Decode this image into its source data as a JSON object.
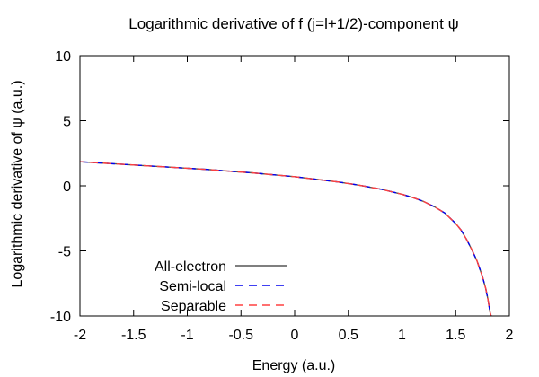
{
  "chart_data": {
    "type": "line",
    "title": "Logarithmic derivative of f (j=l+1/2)-component ψ",
    "xlabel": "Energy (a.u.)",
    "ylabel": "Logarithmic derivative of ψ (a.u.)",
    "xlim": [
      -2,
      2
    ],
    "ylim": [
      -10,
      10
    ],
    "xticks": [
      -2,
      -1.5,
      -1,
      -0.5,
      0,
      0.5,
      1,
      1.5,
      2
    ],
    "xtick_labels": [
      "-2",
      "-1.5",
      "-1",
      "-0.5",
      "0",
      "0.5",
      "1",
      "1.5",
      "2"
    ],
    "yticks": [
      -10,
      -5,
      0,
      5,
      10
    ],
    "ytick_labels": [
      "-10",
      "-5",
      "0",
      "5",
      "10"
    ],
    "grid": false,
    "legend_position": "bottom-left",
    "series": [
      {
        "name": "All-electron",
        "color": "#555555",
        "dash": "solid",
        "x": [
          -2.0,
          -1.8,
          -1.6,
          -1.4,
          -1.2,
          -1.0,
          -0.8,
          -0.6,
          -0.4,
          -0.2,
          0.0,
          0.2,
          0.4,
          0.6,
          0.8,
          1.0,
          1.1,
          1.2,
          1.3,
          1.4,
          1.5,
          1.55,
          1.6,
          1.65,
          1.7,
          1.75,
          1.78,
          1.8,
          1.81,
          1.82,
          1.83
        ],
        "y": [
          1.85,
          1.75,
          1.65,
          1.55,
          1.45,
          1.35,
          1.25,
          1.12,
          1.0,
          0.85,
          0.7,
          0.5,
          0.3,
          0.05,
          -0.25,
          -0.65,
          -0.9,
          -1.2,
          -1.6,
          -2.1,
          -2.9,
          -3.4,
          -4.1,
          -4.9,
          -5.8,
          -7.0,
          -7.9,
          -8.7,
          -9.2,
          -9.7,
          -10.0
        ]
      },
      {
        "name": "Semi-local",
        "color": "#0000ee",
        "dash": "dashed",
        "x": [
          -2.0,
          -1.8,
          -1.6,
          -1.4,
          -1.2,
          -1.0,
          -0.8,
          -0.6,
          -0.4,
          -0.2,
          0.0,
          0.2,
          0.4,
          0.6,
          0.8,
          1.0,
          1.1,
          1.2,
          1.3,
          1.4,
          1.5,
          1.55,
          1.6,
          1.65,
          1.7,
          1.75,
          1.78,
          1.8,
          1.81,
          1.82,
          1.83
        ],
        "y": [
          1.85,
          1.75,
          1.65,
          1.55,
          1.45,
          1.35,
          1.25,
          1.12,
          1.0,
          0.85,
          0.7,
          0.5,
          0.3,
          0.05,
          -0.25,
          -0.65,
          -0.9,
          -1.2,
          -1.6,
          -2.1,
          -2.9,
          -3.4,
          -4.1,
          -4.9,
          -5.8,
          -7.0,
          -7.9,
          -8.7,
          -9.2,
          -9.7,
          -10.0
        ]
      },
      {
        "name": "Separable",
        "color": "#ff4040",
        "dash": "dashed",
        "x": [
          -2.0,
          -1.8,
          -1.6,
          -1.4,
          -1.2,
          -1.0,
          -0.8,
          -0.6,
          -0.4,
          -0.2,
          0.0,
          0.2,
          0.4,
          0.6,
          0.8,
          1.0,
          1.1,
          1.2,
          1.3,
          1.4,
          1.5,
          1.55,
          1.6,
          1.65,
          1.7,
          1.75,
          1.78,
          1.8,
          1.81,
          1.82,
          1.83
        ],
        "y": [
          1.85,
          1.75,
          1.65,
          1.55,
          1.45,
          1.35,
          1.25,
          1.12,
          1.0,
          0.85,
          0.7,
          0.5,
          0.3,
          0.05,
          -0.25,
          -0.65,
          -0.9,
          -1.2,
          -1.6,
          -2.1,
          -2.9,
          -3.4,
          -4.1,
          -4.9,
          -5.8,
          -7.0,
          -7.9,
          -8.7,
          -9.2,
          -9.7,
          -10.0
        ]
      }
    ]
  }
}
